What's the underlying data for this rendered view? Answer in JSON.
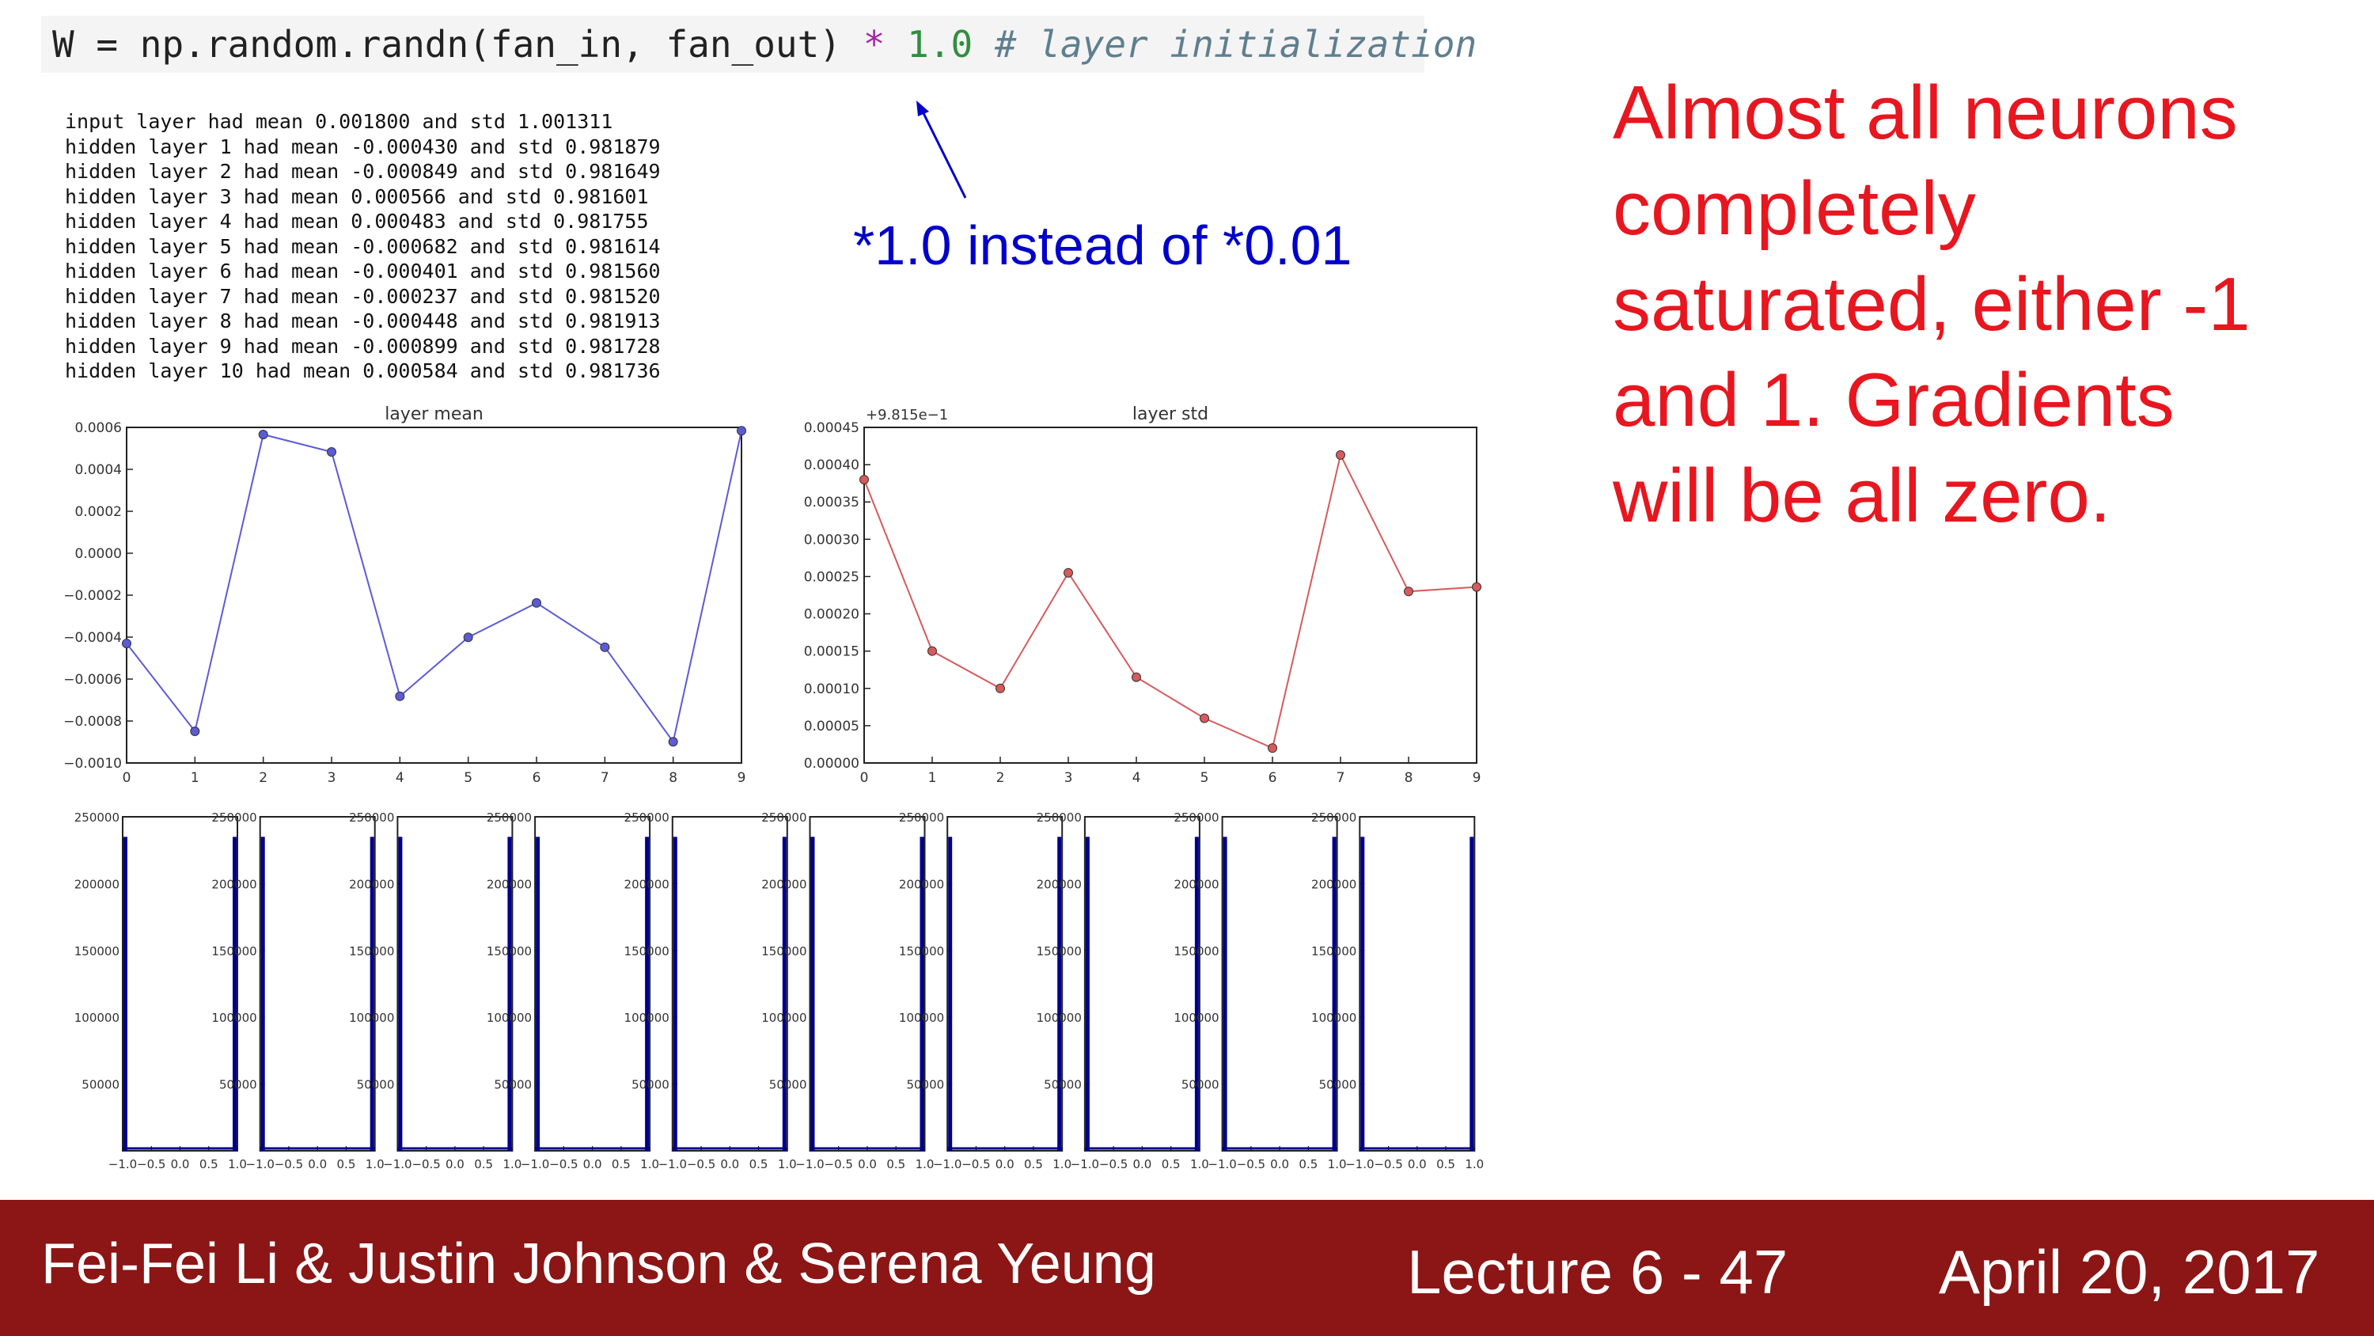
{
  "code": {
    "part1": "W = np.random.randn(fan_in, fan_out) ",
    "op": "*",
    "num": " 1.0",
    "comment": " # layer initialization"
  },
  "log_lines": [
    "input layer had mean 0.001800 and std 1.001311",
    "hidden layer 1 had mean -0.000430 and std 0.981879",
    "hidden layer 2 had mean -0.000849 and std 0.981649",
    "hidden layer 3 had mean 0.000566 and std 0.981601",
    "hidden layer 4 had mean 0.000483 and std 0.981755",
    "hidden layer 5 had mean -0.000682 and std 0.981614",
    "hidden layer 6 had mean -0.000401 and std 0.981560",
    "hidden layer 7 had mean -0.000237 and std 0.981520",
    "hidden layer 8 had mean -0.000448 and std 0.981913",
    "hidden layer 9 had mean -0.000899 and std 0.981728",
    "hidden layer 10 had mean 0.000584 and std 0.981736"
  ],
  "annotation": "*1.0 instead of *0.01",
  "callout": "Almost all neurons\ncompletely\nsaturated, either -1\nand 1. Gradients\nwill be all zero.",
  "chart_data": [
    {
      "type": "line",
      "title": "layer mean",
      "x": [
        0,
        1,
        2,
        3,
        4,
        5,
        6,
        7,
        8,
        9
      ],
      "values": [
        -0.00043,
        -0.000849,
        0.000566,
        0.000483,
        -0.000682,
        -0.000401,
        -0.000237,
        -0.000448,
        -0.000899,
        0.000584
      ],
      "ylim": [
        -0.001,
        0.0006
      ],
      "yticks": [
        "0.0006",
        "0.0004",
        "0.0002",
        "0.0000",
        "−0.0002",
        "−0.0004",
        "−0.0006",
        "−0.0008",
        "−0.0010"
      ],
      "xticks": [
        "0",
        "1",
        "2",
        "3",
        "4",
        "5",
        "6",
        "7",
        "8",
        "9"
      ],
      "color": "#5b5bd6"
    },
    {
      "type": "line",
      "title": "layer std",
      "offset_label": "+9.815e−1",
      "x": [
        0,
        1,
        2,
        3,
        4,
        5,
        6,
        7,
        8,
        9
      ],
      "values": [
        0.00038,
        0.00015,
        0.0001,
        0.000255,
        0.000115,
        6e-05,
        2e-05,
        0.000413,
        0.00023,
        0.000236
      ],
      "ylim": [
        0,
        0.00045
      ],
      "yticks": [
        "0.00045",
        "0.00040",
        "0.00035",
        "0.00030",
        "0.00025",
        "0.00020",
        "0.00015",
        "0.00010",
        "0.00005",
        "0.00000"
      ],
      "xticks": [
        "0",
        "1",
        "2",
        "3",
        "4",
        "5",
        "6",
        "7",
        "8",
        "9"
      ],
      "color": "#d65b5b"
    },
    {
      "type": "bar",
      "description_count": 10,
      "ylim": [
        0,
        250000
      ],
      "yticks": [
        "250000",
        "200000",
        "150000",
        "100000",
        "50000"
      ],
      "xticks": [
        "−1.0",
        "−0.5",
        "0.0",
        "0.5",
        "1.0"
      ],
      "left_bar": 235000,
      "right_bar": 235000,
      "color": "#00008b"
    }
  ],
  "footer": {
    "authors": "Fei-Fei Li & Justin Johnson & Serena Yeung",
    "lecture": "Lecture 6 - 47",
    "date": "April 20, 2017"
  }
}
